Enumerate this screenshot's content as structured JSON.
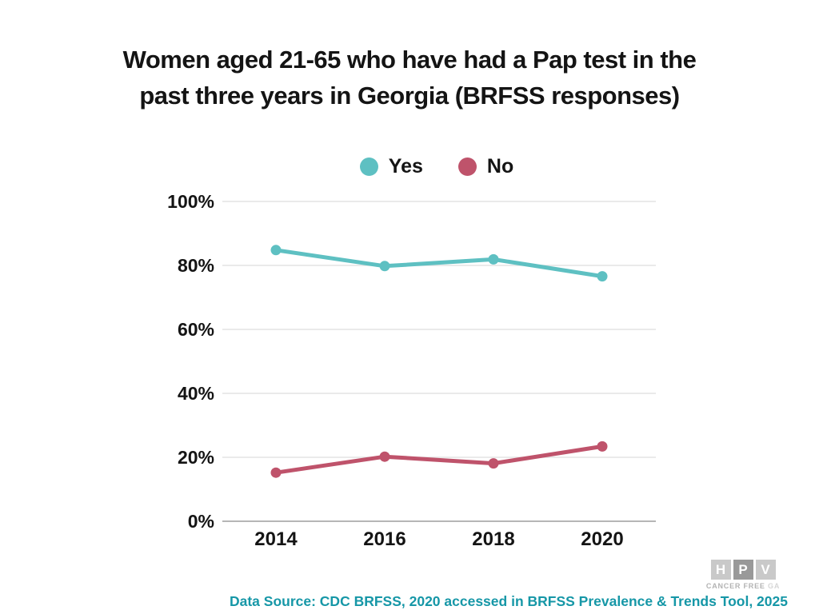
{
  "title": {
    "line1": "Women aged 21-65 who have had a Pap test in the",
    "line2": "past three years in Georgia (BRFSS responses)"
  },
  "legend": {
    "items": [
      {
        "label": "Yes",
        "color": "#5ec0c2"
      },
      {
        "label": "No",
        "color": "#bf536b"
      }
    ]
  },
  "chart_data": {
    "type": "line",
    "title": "Women aged 21-65 who have had a Pap test in the past three years in Georgia (BRFSS responses)",
    "x": [
      "2014",
      "2016",
      "2018",
      "2020"
    ],
    "series": [
      {
        "name": "Yes",
        "color": "#5ec0c2",
        "values": [
          84.8,
          79.8,
          81.9,
          76.6
        ]
      },
      {
        "name": "No",
        "color": "#bf536b",
        "values": [
          15.2,
          20.2,
          18.1,
          23.4
        ]
      }
    ],
    "xlabel": "",
    "ylabel": "",
    "ylim": [
      0,
      100
    ],
    "yticks": [
      0,
      20,
      40,
      60,
      80,
      100
    ],
    "ytick_labels": [
      "0%",
      "20%",
      "40%",
      "60%",
      "80%",
      "100%"
    ],
    "grid": true,
    "legend_position": "top"
  },
  "footer": {
    "source_text": "Data Source: CDC BRFSS, 2020 accessed in BRFSS Prevalence & Trends Tool, 2025",
    "source_color": "#1697a7"
  },
  "logo": {
    "letters": [
      "H",
      "P",
      "V"
    ],
    "tagline": "CANCER FREE",
    "tagline_suffix": "GA"
  }
}
